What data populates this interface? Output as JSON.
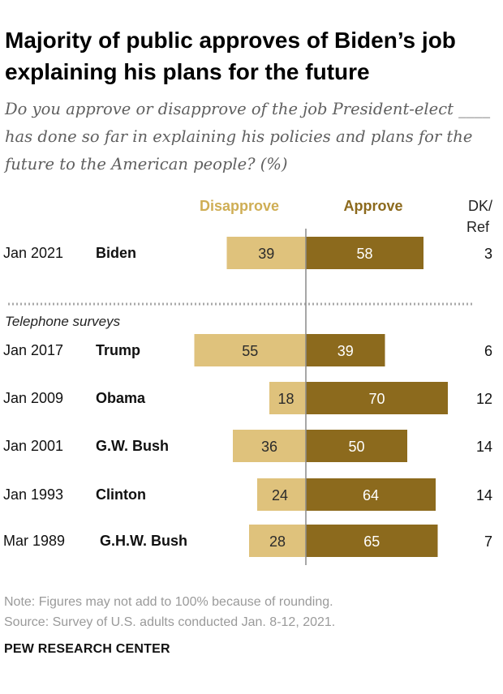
{
  "title": "Majority of public approves of Biden’s job explaining his plans for the future",
  "subtitle": "Do you approve or disapprove of the job President-elect ____ has done so far in explaining his policies and plans for the future to the American people? (%)",
  "colors": {
    "disapprove": "#dfc27c",
    "approve": "#8c6a1d",
    "disapprove_label": "#cfae55",
    "approve_label": "#8c6a1d"
  },
  "chart_data": {
    "type": "bar",
    "subtype": "diverging-stacked",
    "column_headers": {
      "disapprove": "Disapprove",
      "approve": "Approve",
      "dk_ref": [
        "DK/",
        "Ref"
      ]
    },
    "separator_label": "Telephone surveys",
    "rows": [
      {
        "date": "Jan 2021",
        "name": "Biden",
        "disapprove": 39,
        "approve": 58,
        "dk_ref": 3
      },
      {
        "date": "Jan 2017",
        "name": "Trump",
        "disapprove": 55,
        "approve": 39,
        "dk_ref": 6
      },
      {
        "date": "Jan 2009",
        "name": "Obama",
        "disapprove": 18,
        "approve": 70,
        "dk_ref": 12
      },
      {
        "date": "Jan 2001",
        "name": "G.W. Bush",
        "disapprove": 36,
        "approve": 50,
        "dk_ref": 14
      },
      {
        "date": "Jan 1993",
        "name": "Clinton",
        "disapprove": 24,
        "approve": 64,
        "dk_ref": 14
      },
      {
        "date": "Mar 1989",
        "name": "G.H.W. Bush",
        "disapprove": 28,
        "approve": 65,
        "dk_ref": 7
      }
    ]
  },
  "note": "Note: Figures may not add to 100% because of rounding.",
  "source": "Source: Survey of U.S. adults conducted Jan. 8-12, 2021.",
  "brand": "PEW RESEARCH CENTER"
}
